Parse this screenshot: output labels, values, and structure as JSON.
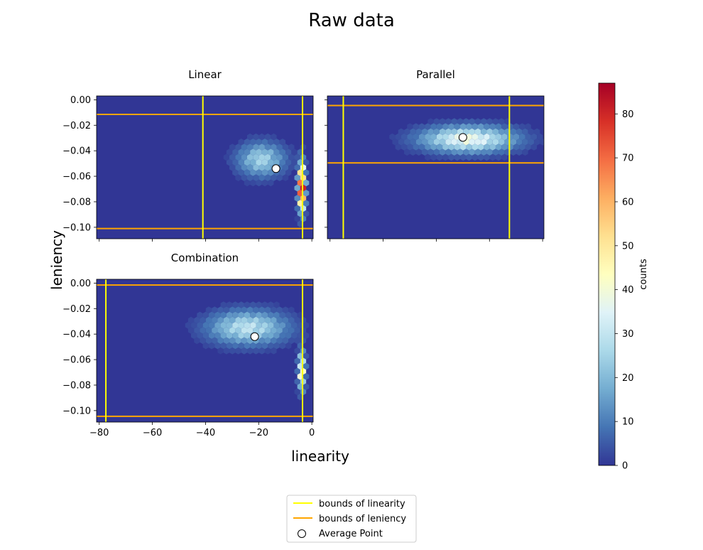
{
  "figure": {
    "title": "Raw data",
    "xlabel": "linearity",
    "ylabel": "leniency"
  },
  "colorbar": {
    "label": "counts",
    "min": 0,
    "max": 87,
    "ticks": [
      0,
      10,
      20,
      30,
      40,
      50,
      60,
      70,
      80
    ],
    "tick_labels": [
      "0",
      "10",
      "20",
      "30",
      "40",
      "50",
      "60",
      "70",
      "80"
    ],
    "colormap": "RdYlBu_r",
    "colormap_stops": [
      "#313695",
      "#4575b4",
      "#74add1",
      "#abd9e9",
      "#e0f3f8",
      "#ffffbf",
      "#fee090",
      "#fdae61",
      "#f46d43",
      "#d73027",
      "#a50026"
    ]
  },
  "legend": {
    "placement": "bottom-center",
    "entries": [
      {
        "label": "bounds of linearity",
        "color": "#ffff00",
        "kind": "line"
      },
      {
        "label": "bounds of leniency",
        "color": "#ffa500",
        "kind": "line"
      },
      {
        "label": "Average Point",
        "color": "#000000",
        "kind": "marker"
      }
    ]
  },
  "chart_data": [
    {
      "type": "heatmap",
      "title": "Linear",
      "xlim": [
        -81,
        0.5
      ],
      "ylim": [
        -0.109,
        0.003
      ],
      "x_ticks": [
        -80,
        -60,
        -40,
        -20,
        0
      ],
      "x_tick_labels": [
        "−80",
        "−60",
        "−40",
        "−20",
        "0"
      ],
      "show_x_tick_labels": false,
      "y_ticks": [
        0.0,
        -0.02,
        -0.04,
        -0.06,
        -0.08,
        -0.1
      ],
      "y_tick_labels": [
        "0.00",
        "−0.02",
        "−0.04",
        "−0.06",
        "−0.08",
        "−0.10"
      ],
      "show_y_tick_labels": true,
      "linearity_bounds": [
        -41,
        -3.5
      ],
      "leniency_bounds": [
        -0.0115,
        -0.101
      ],
      "average_point": {
        "x": -13.5,
        "y": -0.054
      },
      "clusters": [
        {
          "x": -19,
          "y": -0.047,
          "sx": 6,
          "sy": 0.009,
          "peak": 24
        },
        {
          "x": -3.8,
          "y": -0.069,
          "sx": 0.9,
          "sy": 0.012,
          "peak": 87
        }
      ]
    },
    {
      "type": "heatmap",
      "title": "Parallel",
      "xlim": [
        -81,
        0.5
      ],
      "ylim": [
        -0.109,
        0.003
      ],
      "x_ticks": [
        -80,
        -60,
        -40,
        -20,
        0
      ],
      "x_tick_labels": [
        "−80",
        "−60",
        "−40",
        "−20",
        "0"
      ],
      "show_x_tick_labels": false,
      "y_ticks": [
        0.0,
        -0.02,
        -0.04,
        -0.06,
        -0.08,
        -0.1
      ],
      "y_tick_labels": [
        "0.00",
        "−0.02",
        "−0.04",
        "−0.06",
        "−0.08",
        "−0.10"
      ],
      "show_y_tick_labels": false,
      "linearity_bounds": [
        -75,
        -12.5
      ],
      "leniency_bounds": [
        -0.0045,
        -0.0495
      ],
      "average_point": {
        "x": -30,
        "y": -0.0295
      },
      "clusters": [
        {
          "x": -28,
          "y": -0.031,
          "sx": 12,
          "sy": 0.007,
          "peak": 36
        }
      ]
    },
    {
      "type": "heatmap",
      "title": "Combination",
      "xlim": [
        -81,
        0.5
      ],
      "ylim": [
        -0.109,
        0.003
      ],
      "x_ticks": [
        -80,
        -60,
        -40,
        -20,
        0
      ],
      "x_tick_labels": [
        "−80",
        "−60",
        "−40",
        "−20",
        "0"
      ],
      "show_x_tick_labels": true,
      "y_ticks": [
        0.0,
        -0.02,
        -0.04,
        -0.06,
        -0.08,
        -0.1
      ],
      "y_tick_labels": [
        "0.00",
        "−0.02",
        "−0.04",
        "−0.06",
        "−0.08",
        "−0.10"
      ],
      "show_y_tick_labels": true,
      "linearity_bounds": [
        -77.5,
        -3.5
      ],
      "leniency_bounds": [
        -0.0015,
        -0.1045
      ],
      "average_point": {
        "x": -21.5,
        "y": -0.042
      },
      "clusters": [
        {
          "x": -24,
          "y": -0.035,
          "sx": 10,
          "sy": 0.009,
          "peak": 28
        },
        {
          "x": -3.8,
          "y": -0.069,
          "sx": 0.9,
          "sy": 0.01,
          "peak": 45
        }
      ]
    }
  ]
}
